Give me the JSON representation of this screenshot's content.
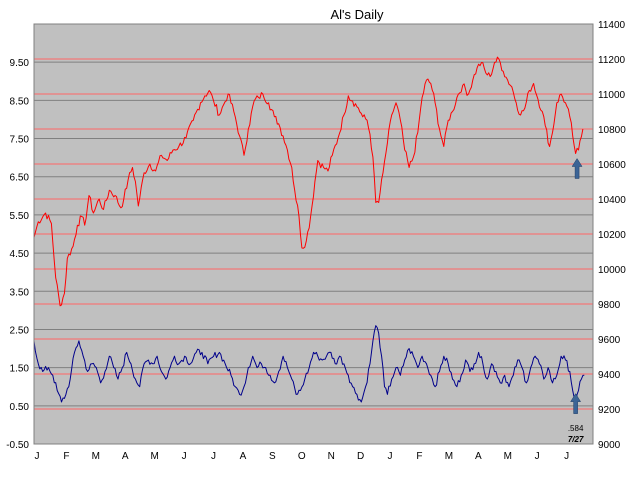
{
  "chart_data": {
    "type": "line",
    "title": "Al's Daily",
    "xlabel": "",
    "ylabel": "",
    "x_tick_labels": [
      "J",
      "F",
      "M",
      "A",
      "M",
      "J",
      "J",
      "A",
      "S",
      "O",
      "N",
      "D",
      "J",
      "F",
      "M",
      "A",
      "M",
      "J",
      "J"
    ],
    "y_left": {
      "lim": [
        -0.5,
        10.5
      ],
      "ticks": [
        "-0.50",
        "0.50",
        "1.50",
        "2.50",
        "3.50",
        "4.50",
        "5.50",
        "6.50",
        "7.50",
        "8.50",
        "9.50"
      ]
    },
    "y_right": {
      "lim": [
        9000,
        11400
      ],
      "ticks": [
        "9000",
        "9200",
        "9400",
        "9600",
        "9800",
        "10000",
        "10200",
        "10400",
        "10600",
        "10800",
        "11000",
        "11200",
        "11400"
      ]
    },
    "grid": true,
    "plot_background": "#c0c0c0",
    "colors": {
      "left_grid": "#808080",
      "right_grid": "#ff6666",
      "series_red": "#ff0000",
      "series_blue": "#00008b",
      "arrow": "#3b6496"
    },
    "series": [
      {
        "axis": "right",
        "color": "#ff0000",
        "points": [
          [
            0,
            10180
          ],
          [
            3,
            10270
          ],
          [
            8,
            10320
          ],
          [
            12,
            10260
          ],
          [
            15,
            9950
          ],
          [
            18,
            9790
          ],
          [
            21,
            9860
          ],
          [
            23,
            10060
          ],
          [
            27,
            10130
          ],
          [
            30,
            10250
          ],
          [
            33,
            10300
          ],
          [
            35,
            10250
          ],
          [
            38,
            10420
          ],
          [
            41,
            10320
          ],
          [
            45,
            10400
          ],
          [
            48,
            10340
          ],
          [
            52,
            10450
          ],
          [
            56,
            10420
          ],
          [
            60,
            10350
          ],
          [
            62,
            10400
          ],
          [
            65,
            10510
          ],
          [
            68,
            10580
          ],
          [
            70,
            10500
          ],
          [
            72,
            10360
          ],
          [
            76,
            10550
          ],
          [
            80,
            10600
          ],
          [
            84,
            10560
          ],
          [
            88,
            10650
          ],
          [
            92,
            10620
          ],
          [
            96,
            10680
          ],
          [
            100,
            10700
          ],
          [
            105,
            10750
          ],
          [
            110,
            10850
          ],
          [
            115,
            10950
          ],
          [
            118,
            10990
          ],
          [
            121,
            11020
          ],
          [
            124,
            10960
          ],
          [
            128,
            10880
          ],
          [
            131,
            10940
          ],
          [
            134,
            11000
          ],
          [
            138,
            10900
          ],
          [
            142,
            10760
          ],
          [
            145,
            10650
          ],
          [
            148,
            10800
          ],
          [
            152,
            10960
          ],
          [
            155,
            10980
          ],
          [
            158,
            11000
          ],
          [
            162,
            10950
          ],
          [
            166,
            10870
          ],
          [
            169,
            10830
          ],
          [
            172,
            10760
          ],
          [
            175,
            10680
          ],
          [
            178,
            10580
          ],
          [
            180,
            10450
          ],
          [
            183,
            10300
          ],
          [
            185,
            10120
          ],
          [
            188,
            10160
          ],
          [
            191,
            10300
          ],
          [
            194,
            10500
          ],
          [
            196,
            10620
          ],
          [
            200,
            10580
          ],
          [
            203,
            10560
          ],
          [
            206,
            10650
          ],
          [
            210,
            10750
          ],
          [
            214,
            10880
          ],
          [
            217,
            10990
          ],
          [
            220,
            10960
          ],
          [
            224,
            10920
          ],
          [
            227,
            10870
          ],
          [
            230,
            10850
          ],
          [
            232,
            10770
          ],
          [
            234,
            10640
          ],
          [
            236,
            10380
          ],
          [
            238,
            10380
          ],
          [
            241,
            10550
          ],
          [
            244,
            10720
          ],
          [
            247,
            10880
          ],
          [
            250,
            10950
          ],
          [
            253,
            10850
          ],
          [
            256,
            10680
          ],
          [
            259,
            10580
          ],
          [
            262,
            10640
          ],
          [
            265,
            10780
          ],
          [
            268,
            10980
          ],
          [
            271,
            11080
          ],
          [
            274,
            11060
          ],
          [
            277,
            10950
          ],
          [
            280,
            10800
          ],
          [
            283,
            10700
          ],
          [
            286,
            10850
          ],
          [
            289,
            10900
          ],
          [
            292,
            10980
          ],
          [
            296,
            11050
          ],
          [
            300,
            11000
          ],
          [
            303,
            11080
          ],
          [
            306,
            11150
          ],
          [
            309,
            11180
          ],
          [
            312,
            11120
          ],
          [
            315,
            11100
          ],
          [
            318,
            11180
          ],
          [
            321,
            11200
          ],
          [
            324,
            11130
          ],
          [
            327,
            11080
          ],
          [
            330,
            11040
          ],
          [
            333,
            10950
          ],
          [
            336,
            10880
          ],
          [
            339,
            10920
          ],
          [
            342,
            11020
          ],
          [
            345,
            11060
          ],
          [
            348,
            10970
          ],
          [
            351,
            10900
          ],
          [
            353,
            10820
          ],
          [
            356,
            10700
          ],
          [
            358,
            10780
          ],
          [
            361,
            10950
          ],
          [
            364,
            11000
          ],
          [
            367,
            10950
          ],
          [
            370,
            10870
          ],
          [
            372,
            10760
          ],
          [
            374,
            10660
          ],
          [
            376,
            10680
          ],
          [
            379,
            10800
          ]
        ]
      },
      {
        "axis": "left",
        "color": "#00008b",
        "points": [
          [
            0,
            2.2
          ],
          [
            3,
            1.6
          ],
          [
            6,
            1.4
          ],
          [
            10,
            1.5
          ],
          [
            13,
            1.3
          ],
          [
            16,
            0.9
          ],
          [
            19,
            0.6
          ],
          [
            22,
            0.8
          ],
          [
            25,
            1.2
          ],
          [
            28,
            1.9
          ],
          [
            31,
            2.2
          ],
          [
            34,
            1.8
          ],
          [
            37,
            1.4
          ],
          [
            40,
            1.6
          ],
          [
            43,
            1.5
          ],
          [
            46,
            1.1
          ],
          [
            49,
            1.4
          ],
          [
            52,
            1.8
          ],
          [
            55,
            1.5
          ],
          [
            58,
            1.2
          ],
          [
            61,
            1.5
          ],
          [
            64,
            1.9
          ],
          [
            67,
            1.6
          ],
          [
            70,
            1.2
          ],
          [
            73,
            1.0
          ],
          [
            76,
            1.6
          ],
          [
            79,
            1.7
          ],
          [
            82,
            1.6
          ],
          [
            85,
            1.8
          ],
          [
            88,
            1.4
          ],
          [
            91,
            1.2
          ],
          [
            94,
            1.5
          ],
          [
            97,
            1.8
          ],
          [
            100,
            1.6
          ],
          [
            104,
            1.8
          ],
          [
            108,
            1.6
          ],
          [
            112,
            1.9
          ],
          [
            116,
            1.9
          ],
          [
            120,
            1.6
          ],
          [
            124,
            1.8
          ],
          [
            128,
            1.9
          ],
          [
            132,
            1.6
          ],
          [
            136,
            1.3
          ],
          [
            139,
            1.0
          ],
          [
            142,
            0.8
          ],
          [
            145,
            1.0
          ],
          [
            148,
            1.5
          ],
          [
            151,
            1.8
          ],
          [
            154,
            1.5
          ],
          [
            157,
            1.6
          ],
          [
            160,
            1.5
          ],
          [
            163,
            1.3
          ],
          [
            166,
            1.1
          ],
          [
            169,
            1.4
          ],
          [
            172,
            1.8
          ],
          [
            175,
            1.5
          ],
          [
            178,
            1.2
          ],
          [
            181,
            0.8
          ],
          [
            184,
            0.9
          ],
          [
            187,
            1.2
          ],
          [
            190,
            1.5
          ],
          [
            193,
            1.9
          ],
          [
            196,
            1.8
          ],
          [
            199,
            1.7
          ],
          [
            202,
            1.8
          ],
          [
            205,
            1.9
          ],
          [
            208,
            1.6
          ],
          [
            211,
            1.8
          ],
          [
            214,
            1.6
          ],
          [
            217,
            1.3
          ],
          [
            220,
            1.0
          ],
          [
            223,
            0.8
          ],
          [
            226,
            0.6
          ],
          [
            229,
            1.0
          ],
          [
            232,
            1.6
          ],
          [
            234,
            2.2
          ],
          [
            236,
            2.6
          ],
          [
            238,
            2.4
          ],
          [
            240,
            1.8
          ],
          [
            242,
            1.0
          ],
          [
            244,
            0.8
          ],
          [
            247,
            1.2
          ],
          [
            250,
            1.5
          ],
          [
            253,
            1.3
          ],
          [
            256,
            1.7
          ],
          [
            259,
            2.0
          ],
          [
            262,
            1.8
          ],
          [
            265,
            1.5
          ],
          [
            268,
            1.8
          ],
          [
            271,
            1.6
          ],
          [
            274,
            1.3
          ],
          [
            277,
            1.0
          ],
          [
            280,
            1.4
          ],
          [
            283,
            1.8
          ],
          [
            286,
            1.6
          ],
          [
            289,
            1.2
          ],
          [
            292,
            1.0
          ],
          [
            295,
            1.3
          ],
          [
            298,
            1.7
          ],
          [
            301,
            1.4
          ],
          [
            304,
            1.6
          ],
          [
            307,
            1.9
          ],
          [
            310,
            1.6
          ],
          [
            313,
            1.2
          ],
          [
            316,
            1.6
          ],
          [
            319,
            1.4
          ],
          [
            322,
            1.1
          ],
          [
            325,
            1.3
          ],
          [
            328,
            1.0
          ],
          [
            331,
            1.3
          ],
          [
            334,
            1.7
          ],
          [
            337,
            1.5
          ],
          [
            340,
            1.1
          ],
          [
            343,
            1.5
          ],
          [
            346,
            1.8
          ],
          [
            349,
            1.6
          ],
          [
            352,
            1.2
          ],
          [
            355,
            1.5
          ],
          [
            358,
            1.1
          ],
          [
            361,
            1.3
          ],
          [
            364,
            1.8
          ],
          [
            367,
            1.7
          ],
          [
            370,
            1.4
          ],
          [
            372,
            0.9
          ],
          [
            374,
            0.584
          ],
          [
            376,
            0.9
          ],
          [
            378,
            1.2
          ],
          [
            380,
            1.3
          ]
        ]
      }
    ],
    "annotations": [
      {
        "type": "arrow-up",
        "axis": "right",
        "x": 375,
        "y": 10540
      },
      {
        "type": "arrow-up",
        "axis": "left",
        "x": 374,
        "y": 0.4
      },
      {
        "type": "text",
        "text": ".584"
      },
      {
        "type": "text",
        "text": "7/27"
      }
    ]
  }
}
